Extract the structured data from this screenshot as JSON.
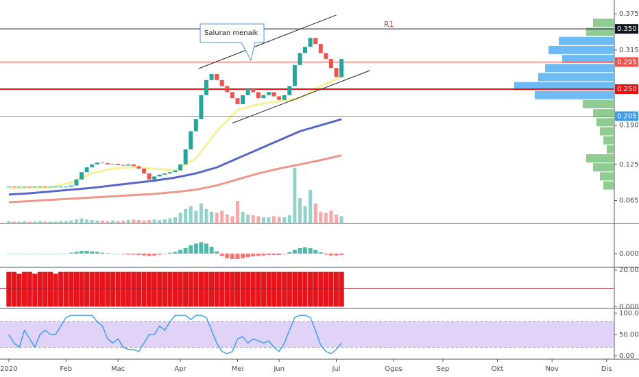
{
  "chart_data": {
    "type": "candlestick",
    "annotation": "Saluran menaik",
    "x": [
      0,
      2,
      4,
      6,
      8,
      10,
      12,
      14,
      16,
      18,
      20,
      22,
      24,
      26,
      28,
      30,
      32,
      34,
      36,
      38,
      40,
      42,
      44,
      46,
      48,
      50,
      52,
      54,
      56,
      58,
      60,
      62,
      64,
      66,
      68,
      70,
      72,
      74,
      76,
      78,
      80,
      82,
      84,
      86,
      88,
      90,
      92,
      94,
      96,
      98,
      100,
      102,
      104,
      106,
      108,
      110,
      112,
      114,
      116,
      118,
      120,
      122,
      124,
      126,
      128
    ],
    "close": [
      0.088,
      0.087,
      0.088,
      0.088,
      0.087,
      0.088,
      0.088,
      0.087,
      0.088,
      0.088,
      0.088,
      0.088,
      0.09,
      0.1,
      0.112,
      0.12,
      0.125,
      0.128,
      0.127,
      0.125,
      0.126,
      0.124,
      0.123,
      0.125,
      0.122,
      0.118,
      0.11,
      0.1,
      0.105,
      0.108,
      0.11,
      0.112,
      0.115,
      0.125,
      0.15,
      0.18,
      0.2,
      0.24,
      0.265,
      0.275,
      0.265,
      0.255,
      0.245,
      0.235,
      0.225,
      0.24,
      0.25,
      0.245,
      0.235,
      0.24,
      0.245,
      0.238,
      0.232,
      0.24,
      0.255,
      0.29,
      0.31,
      0.32,
      0.335,
      0.325,
      0.31,
      0.3,
      0.285,
      0.27,
      0.3
    ],
    "up_color": "#26a69a",
    "down_color": "#ef5350",
    "xlim": [
      -3.4,
      232.7
    ],
    "xticks": [
      {
        "value": 0,
        "label": "2020"
      },
      {
        "value": 22,
        "label": "Feb"
      },
      {
        "value": 42,
        "label": "Mac"
      },
      {
        "value": 66,
        "label": "Apr"
      },
      {
        "value": 88,
        "label": "Mei"
      },
      {
        "value": 104,
        "label": "Jun"
      },
      {
        "value": 126,
        "label": "Jul"
      },
      {
        "value": 148,
        "label": "Ogos"
      },
      {
        "value": 167,
        "label": "Sep"
      },
      {
        "value": 188,
        "label": "Okt"
      },
      {
        "value": 209,
        "label": "Nov"
      },
      {
        "value": 230,
        "label": "Dis"
      }
    ],
    "ylim": [
      0.028,
      0.398
    ],
    "yticks": [
      0.375,
      0.315,
      {
        "value": 0.19,
        "label": "0.190"
      },
      0.125,
      0.065
    ],
    "levels": [
      {
        "value": 0.35,
        "label": "0.350",
        "color": "#131722",
        "name": "R1"
      },
      {
        "value": 0.295,
        "color": "#ef5350"
      },
      {
        "value": 0.25,
        "label": "0.250",
        "color": "#f01010"
      },
      {
        "value": 0.205,
        "color": "#3d9be9"
      }
    ],
    "trendlines": [
      {
        "x": [
          73,
          126
        ],
        "values": [
          0.284,
          0.373
        ]
      },
      {
        "x": [
          86,
          139
        ],
        "values": [
          0.1935,
          0.281
        ]
      }
    ],
    "moving_averages": [
      {
        "color": "#5566c9",
        "x": [
          0,
          8,
          16,
          24,
          32,
          40,
          48,
          56,
          64,
          72,
          80,
          88,
          96,
          104,
          112,
          120,
          128
        ],
        "values": [
          0.075,
          0.077,
          0.08,
          0.083,
          0.086,
          0.09,
          0.094,
          0.098,
          0.103,
          0.11,
          0.12,
          0.135,
          0.15,
          0.165,
          0.18,
          0.19,
          0.2
        ]
      },
      {
        "color": "#f0958a",
        "x": [
          0,
          8,
          16,
          24,
          32,
          40,
          48,
          56,
          64,
          72,
          80,
          88,
          96,
          104,
          112,
          120,
          128
        ],
        "values": [
          0.062,
          0.064,
          0.066,
          0.068,
          0.07,
          0.072,
          0.074,
          0.076,
          0.079,
          0.083,
          0.09,
          0.1,
          0.11,
          0.118,
          0.125,
          0.132,
          0.14
        ]
      },
      {
        "color": "#f6f09a",
        "x": [
          0,
          8,
          16,
          24,
          32,
          40,
          48,
          56,
          64,
          72,
          80,
          88,
          96,
          104,
          112,
          120,
          128
        ],
        "values": [
          0.085,
          0.086,
          0.087,
          0.095,
          0.11,
          0.118,
          0.12,
          0.118,
          0.115,
          0.135,
          0.18,
          0.215,
          0.225,
          0.23,
          0.235,
          0.255,
          0.27
        ]
      }
    ],
    "volume": [
      3,
      2,
      2,
      3,
      2,
      2,
      3,
      2,
      2,
      2,
      3,
      3,
      4,
      6,
      8,
      6,
      5,
      4,
      4,
      3,
      4,
      3,
      4,
      5,
      6,
      5,
      4,
      5,
      6,
      5,
      6,
      8,
      10,
      18,
      25,
      30,
      22,
      35,
      25,
      20,
      18,
      22,
      15,
      12,
      40,
      20,
      15,
      14,
      12,
      10,
      10,
      12,
      11,
      10,
      14,
      100,
      45,
      30,
      60,
      35,
      20,
      18,
      22,
      15,
      12
    ],
    "volume_lim": [
      0,
      100
    ],
    "volume_profile": {
      "prices": [
        0.36,
        0.345,
        0.33,
        0.315,
        0.3,
        0.285,
        0.27,
        0.255,
        0.24,
        0.225,
        0.21,
        0.195,
        0.18,
        0.165,
        0.15,
        0.135,
        0.12,
        0.105,
        0.09
      ],
      "values": [
        30,
        40,
        80,
        95,
        75,
        100,
        110,
        145,
        115,
        45,
        30,
        25,
        20,
        15,
        10,
        40,
        30,
        20,
        15
      ],
      "colors": [
        "#7cc27f",
        "#7cc27f",
        "#55aef0",
        "#55aef0",
        "#55aef0",
        "#55aef0",
        "#55aef0",
        "#55aef0",
        "#55aef0",
        "#7cc27f",
        "#7cc27f",
        "#7cc27f",
        "#7cc27f",
        "#7cc27f",
        "#7cc27f",
        "#7cc27f",
        "#7cc27f",
        "#7cc27f",
        "#7cc27f"
      ],
      "lim": [
        0,
        150
      ]
    },
    "macd_histogram": [
      0,
      0,
      0,
      0,
      0,
      0,
      0,
      0,
      0,
      0,
      0,
      0,
      0.002,
      0.004,
      0.006,
      0.006,
      0.005,
      0.004,
      0.002,
      0.001,
      0,
      0,
      -0.001,
      -0.002,
      -0.002,
      -0.003,
      -0.004,
      -0.005,
      -0.004,
      -0.002,
      0,
      0.002,
      0.004,
      0.008,
      0.012,
      0.018,
      0.022,
      0.025,
      0.022,
      0.015,
      0.005,
      -0.005,
      -0.01,
      -0.012,
      -0.012,
      -0.01,
      -0.008,
      -0.006,
      -0.005,
      -0.004,
      -0.003,
      -0.003,
      -0.003,
      -0.001,
      0.003,
      0.008,
      0.012,
      0.014,
      0.012,
      0.008,
      0.003,
      -0.002,
      -0.004,
      -0.004,
      -0.003
    ],
    "macd_lim": [
      -0.03,
      0.06
    ],
    "macd_ticks": [
      {
        "value": 0,
        "label": "0.000"
      }
    ],
    "oscillator": {
      "color": "#e8141c",
      "values": [
        19,
        19,
        18,
        19,
        19,
        18,
        19,
        19,
        19,
        18,
        19,
        19,
        19,
        19,
        19,
        19,
        19,
        19,
        19,
        19,
        19,
        19,
        19,
        19,
        19,
        19,
        19,
        19,
        19,
        19,
        19,
        19,
        19,
        19,
        19,
        19,
        19,
        19,
        19,
        19,
        19,
        19,
        19,
        19,
        19,
        19,
        19,
        19,
        19,
        19,
        19,
        19,
        19,
        19,
        19,
        19,
        19,
        19,
        19,
        19,
        19,
        19,
        19,
        19,
        19
      ],
      "level": 10,
      "level_color": "#b02030",
      "lim": [
        -1,
        21.5
      ],
      "ticks": [
        {
          "value": 20,
          "label": "20.000"
        },
        {
          "value": 0,
          "label": "0.000"
        }
      ]
    },
    "stochastic": {
      "values": [
        50,
        30,
        20,
        60,
        40,
        20,
        50,
        60,
        50,
        50,
        70,
        90,
        95,
        95,
        95,
        95,
        95,
        80,
        70,
        40,
        30,
        40,
        20,
        15,
        15,
        10,
        30,
        50,
        50,
        70,
        60,
        80,
        95,
        95,
        95,
        85,
        95,
        95,
        90,
        60,
        30,
        10,
        5,
        10,
        40,
        45,
        30,
        40,
        35,
        30,
        35,
        20,
        10,
        30,
        60,
        90,
        95,
        95,
        90,
        60,
        25,
        10,
        5,
        15,
        30
      ],
      "color": "#2196f3",
      "lim": [
        -8,
        108
      ],
      "bands": [
        20,
        80
      ],
      "ticks": [
        {
          "value": 100,
          "label": "100.00"
        },
        {
          "value": 50,
          "label": "50.00"
        },
        {
          "value": 0,
          "label": "0.00"
        }
      ]
    }
  }
}
